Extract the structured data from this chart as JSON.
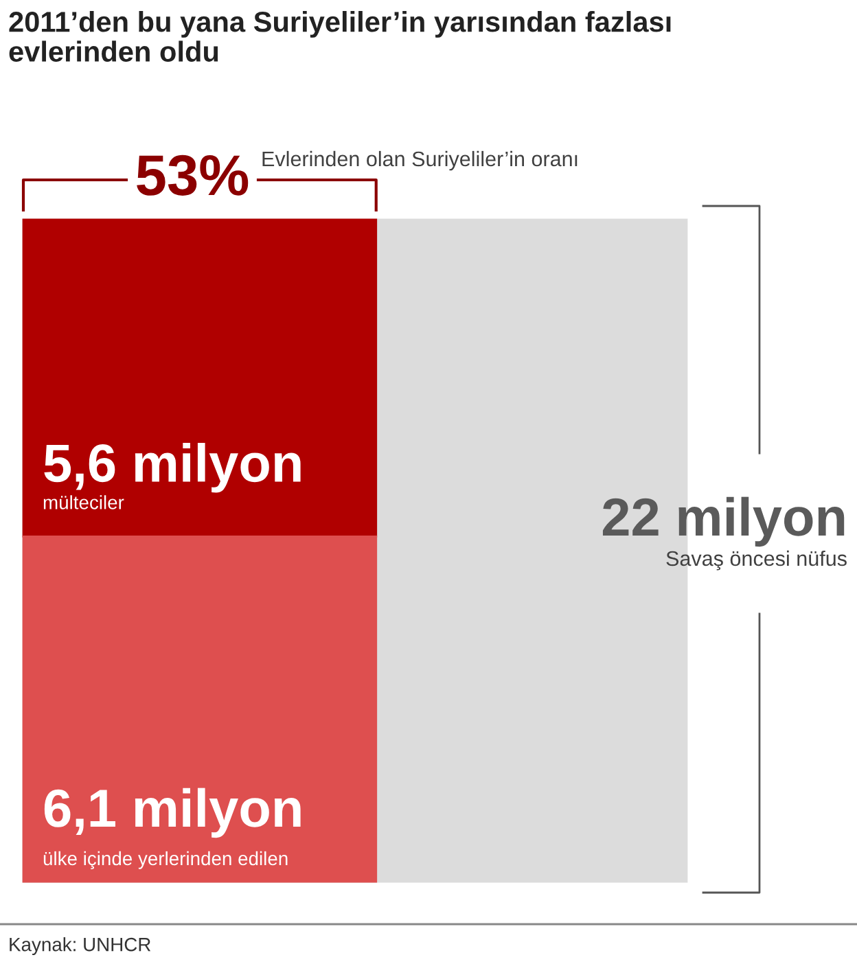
{
  "chart_data": {
    "type": "other",
    "title": "2011’den bu yana Suriyeliler’in yarısından fazlası\nevlerinden oldu",
    "categories": [
      "mülteciler",
      "ülke içinde yerlerinden edilen",
      "Savaş öncesi nüfus"
    ],
    "values": [
      5.6,
      6.1,
      22
    ],
    "value_labels": [
      "5,6 milyon",
      "6,1 milyon",
      "22 milyon"
    ],
    "colors": [
      "#b00000",
      "#de4f4f",
      "#dcdcdc"
    ],
    "annotations": [
      "53%",
      "Evlerinden olan Suriyeliler’in oranı",
      "Kaynak: UNHCR"
    ]
  }
}
